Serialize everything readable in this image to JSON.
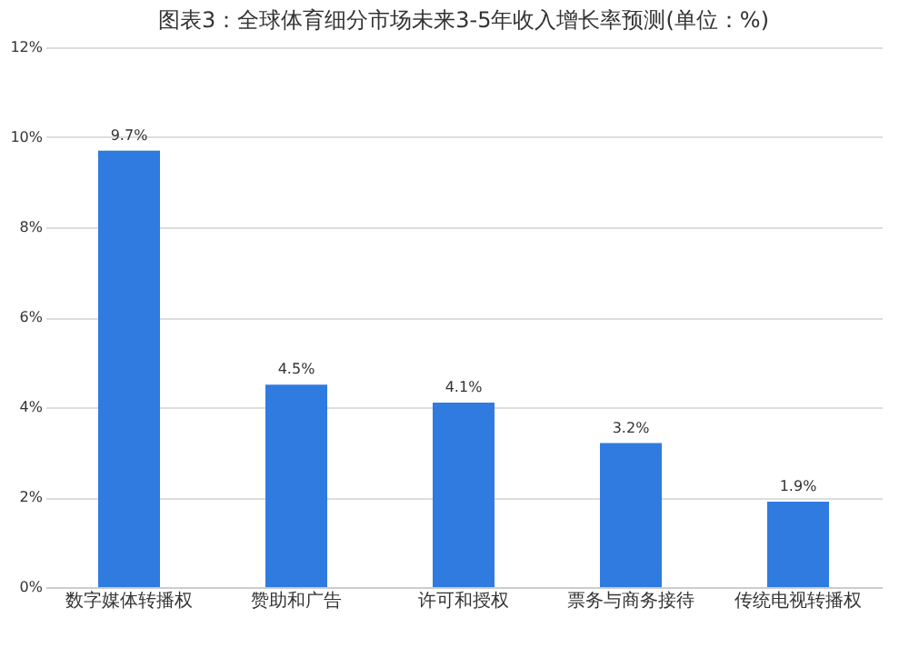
{
  "chart_data": {
    "type": "bar",
    "title": "图表3：全球体育细分市场未来3-5年收入增长率预测(单位：%)",
    "categories": [
      "数字媒体转播权",
      "赞助和广告",
      "许可和授权",
      "票务与商务接待",
      "传统电视转播权"
    ],
    "values": [
      9.7,
      4.5,
      4.1,
      3.2,
      1.9
    ],
    "color": "#2f7be0",
    "value_labels": [
      "9.7%",
      "4.5%",
      "4.1%",
      "3.2%",
      "1.9%"
    ],
    "ylim": [
      0,
      12
    ],
    "yticks": [
      {
        "value": 0,
        "label": "0%"
      },
      {
        "value": 2,
        "label": "2%"
      },
      {
        "value": 4,
        "label": "4%"
      },
      {
        "value": 6,
        "label": "6%"
      },
      {
        "value": 8,
        "label": "8%"
      },
      {
        "value": 10,
        "label": "10%"
      },
      {
        "value": 12,
        "label": "12%"
      }
    ],
    "grid": "y"
  }
}
